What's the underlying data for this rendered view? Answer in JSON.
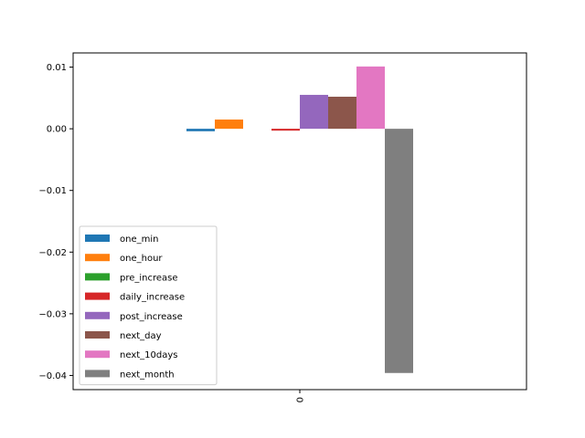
{
  "chart_data": {
    "type": "bar",
    "categories": [
      "0"
    ],
    "series": [
      {
        "name": "one_min",
        "values": [
          -0.0004
        ],
        "color": "#1f77b4"
      },
      {
        "name": "one_hour",
        "values": [
          0.0015
        ],
        "color": "#ff7f0e"
      },
      {
        "name": "pre_increase",
        "values": [
          0.0
        ],
        "color": "#2ca02c"
      },
      {
        "name": "daily_increase",
        "values": [
          -0.0003
        ],
        "color": "#d62728"
      },
      {
        "name": "post_increase",
        "values": [
          0.0055
        ],
        "color": "#9467bd"
      },
      {
        "name": "next_day",
        "values": [
          0.0052
        ],
        "color": "#8c564b"
      },
      {
        "name": "next_10days",
        "values": [
          0.0101
        ],
        "color": "#e377c2"
      },
      {
        "name": "next_month",
        "values": [
          -0.0396
        ],
        "color": "#7f7f7f"
      }
    ],
    "ylim": [
      -0.0423,
      0.0123
    ],
    "yticks": [
      {
        "value": 0.01,
        "label": "0.01"
      },
      {
        "value": 0.0,
        "label": "0.00"
      },
      {
        "value": -0.01,
        "label": "−0.01"
      },
      {
        "value": -0.02,
        "label": "−0.02"
      },
      {
        "value": -0.03,
        "label": "−0.03"
      },
      {
        "value": -0.04,
        "label": "−0.04"
      }
    ],
    "xtick_label": "0",
    "xtick_rotation": 90,
    "grid": false,
    "legend_position": "lower-left",
    "title": "",
    "xlabel": "",
    "ylabel": ""
  }
}
